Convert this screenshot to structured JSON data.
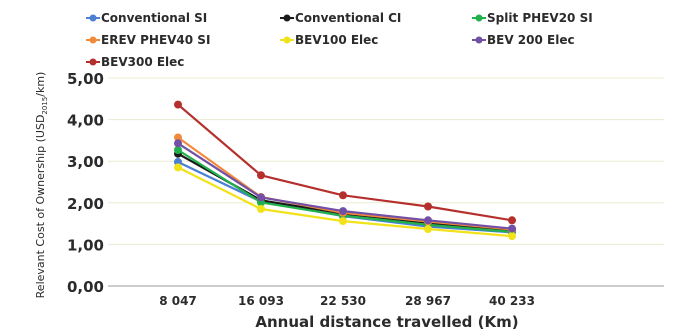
{
  "chart_data": {
    "type": "line",
    "xlabel": "Annual distance travelled (Km)",
    "ylabel": "Relevant Cost of Ownership (USD",
    "ylabel_subscript": "2015",
    "ylabel_suffix": "/km)",
    "categories": [
      "8 047",
      "16 093",
      "22 530",
      "28 967",
      "40 233"
    ],
    "ylim": [
      0,
      5
    ],
    "yticks": [
      "0,00",
      "1,00",
      "2,00",
      "3,00",
      "4,00",
      "5,00"
    ],
    "grid": true,
    "legend_position": "top",
    "series": [
      {
        "name": "Conventional SI",
        "color": "#4a7fd4",
        "values": [
          2.98,
          2.03,
          1.68,
          1.43,
          1.29
        ]
      },
      {
        "name": "Conventional CI",
        "color": "#1a1a1a",
        "values": [
          3.18,
          2.06,
          1.74,
          1.52,
          1.32
        ]
      },
      {
        "name": "Split PHEV20 SI",
        "color": "#22b04b",
        "values": [
          3.27,
          2.01,
          1.69,
          1.47,
          1.3
        ]
      },
      {
        "name": "EREV PHEV40 SI",
        "color": "#f28a3c",
        "values": [
          3.57,
          2.14,
          1.76,
          1.55,
          1.36
        ]
      },
      {
        "name": "BEV100 Elec",
        "color": "#f2e21a",
        "values": [
          2.85,
          1.85,
          1.56,
          1.37,
          1.2
        ]
      },
      {
        "name": "BEV 200 Elec",
        "color": "#7250a6",
        "values": [
          3.43,
          2.13,
          1.8,
          1.58,
          1.38
        ]
      },
      {
        "name": "BEV300 Elec",
        "color": "#b5302d",
        "values": [
          4.36,
          2.66,
          2.18,
          1.91,
          1.58
        ]
      }
    ]
  }
}
